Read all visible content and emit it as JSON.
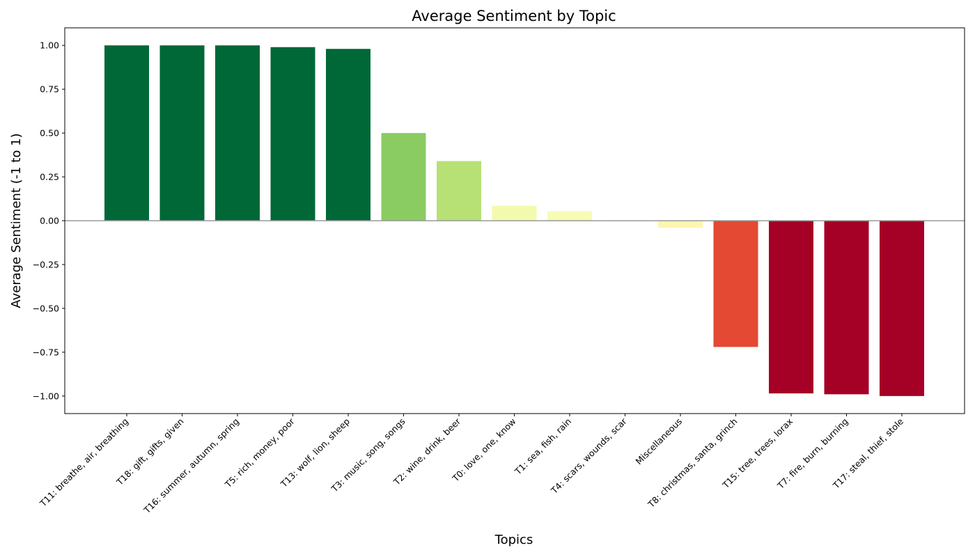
{
  "chart_data": {
    "type": "bar",
    "title": "Average Sentiment by Topic",
    "xlabel": "Topics",
    "ylabel": "Average Sentiment (-1 to 1)",
    "ylim": [
      -1.1,
      1.1
    ],
    "yticks": [
      1.0,
      0.75,
      0.5,
      0.25,
      0.0,
      -0.25,
      -0.5,
      -0.75,
      -1.0
    ],
    "ytick_labels": [
      "1.00",
      "0.75",
      "0.50",
      "0.25",
      "0.00",
      "−0.25",
      "−0.50",
      "−0.75",
      "−1.00"
    ],
    "grid": false,
    "zero_line": true,
    "categories": [
      "T11: breathe, air, breathing",
      "T18: gift, gifts, given",
      "T16: summer, autumn, spring",
      "T5: rich, money, poor",
      "T13: wolf, lion, sheep",
      "T3: music, song, songs",
      "T2: wine, drink, beer",
      "T0: love, one, know",
      "T1: sea, fish, rain",
      "T4: scars, wounds, scar",
      "Miscellaneous",
      "T8: christmas, santa, grinch",
      "T15: tree, trees, lorax",
      "T7: fire, burn, burning",
      "T17: steal, thief, stole"
    ],
    "values": [
      1.0,
      1.0,
      1.0,
      0.99,
      0.98,
      0.5,
      0.34,
      0.085,
      0.055,
      0.003,
      -0.04,
      -0.72,
      -0.985,
      -0.99,
      -1.0
    ],
    "colors": [
      "#006837",
      "#006837",
      "#006837",
      "#006837",
      "#006837",
      "#8ACC62",
      "#B7E075",
      "#F3FAAD",
      "#F7FCB4",
      "#FEFEBD",
      "#FEF6B0",
      "#E34933",
      "#A50026",
      "#A50026",
      "#A50026"
    ]
  }
}
